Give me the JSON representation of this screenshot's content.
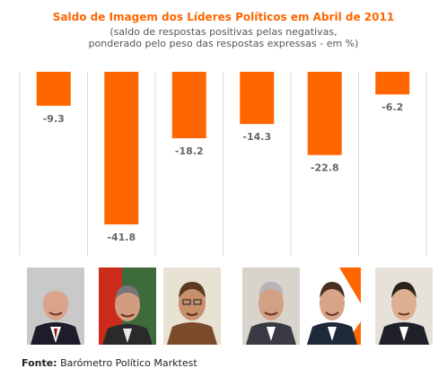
{
  "chart_data": {
    "type": "bar",
    "title": "Saldo de Imagem dos Líderes Políticos em Abril de 2011",
    "subtitle_line1": "(saldo de respostas positivas pelas negativas,",
    "subtitle_line2": "ponderado pelo peso das respostas expressas - em %)",
    "categories": [
      "",
      "",
      "",
      "",
      "",
      ""
    ],
    "values": [
      -9.3,
      -41.8,
      -18.2,
      -14.3,
      -22.8,
      -6.2
    ],
    "value_labels": [
      "-9.3",
      "-41.8",
      "-18.2",
      "-14.3",
      "-22.8",
      "-6.2"
    ],
    "ylim": [
      -45,
      0
    ],
    "grid": false,
    "bar_color": "#ff6600"
  },
  "source": {
    "label": "Fonte:",
    "text": "Barómetro Político Marktest"
  },
  "colors": {
    "accent": "#ff6600",
    "label": "#666666",
    "separator": "#d9d9d9"
  }
}
